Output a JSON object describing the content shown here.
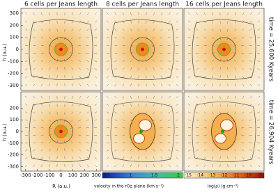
{
  "columns": [
    "6 cells per Jeans length",
    "8 cells per Jeans length",
    "16 cells per Jeans length"
  ],
  "rows": [
    "time = 25.600 Kyears",
    "time = 26.904 Kyears"
  ],
  "y_axis": {
    "label": "h (a.u.)",
    "top_ticks": [
      300,
      200,
      100,
      0,
      -100,
      -200,
      -300
    ],
    "bottom_ticks": [
      200,
      100,
      0,
      -100,
      -200,
      -300
    ]
  },
  "x_axis": {
    "label": "R (a.u.)",
    "ticks": [
      -300,
      -200,
      -100,
      0,
      100,
      200,
      300
    ]
  },
  "velocity_colorbar": {
    "label": "velocity in the rOz plane (km.s⁻¹)",
    "ticks": [
      0.5,
      1,
      1.5,
      2
    ]
  },
  "density_colorbar": {
    "label": "log(ρ) (g.cm⁻³)",
    "ticks": [
      -15,
      -14,
      -13,
      -12,
      -11,
      -10,
      -9
    ]
  }
}
